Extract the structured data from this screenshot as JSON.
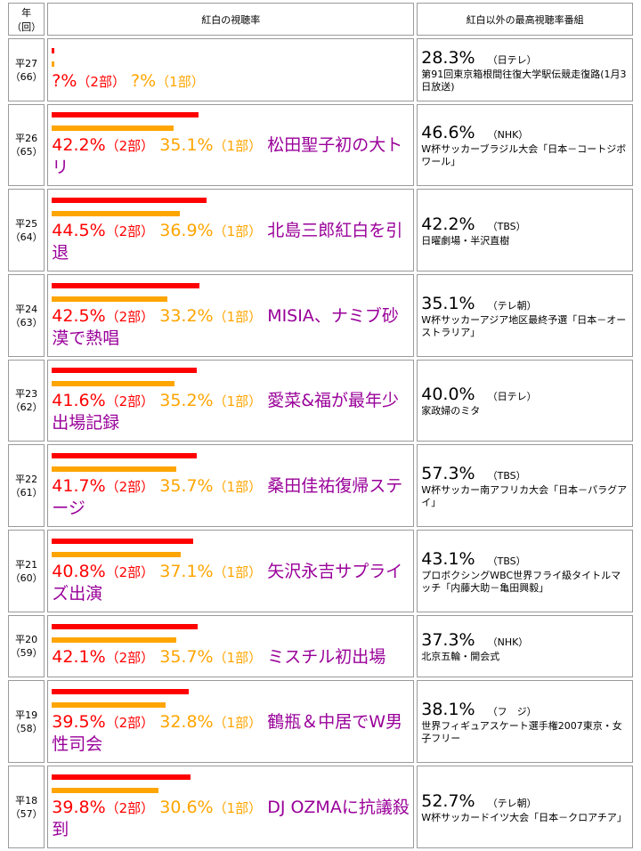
{
  "header": {
    "year_line1": "年",
    "year_line2": "（回）",
    "kohaku": "紅白の視聴率",
    "other": "紅白以外の最高視聴率番組"
  },
  "rows": [
    {
      "year": "平27",
      "edition": "（66）",
      "part2": "?%",
      "part2_unit": "（2部）",
      "part1": "?%",
      "part1_unit": "（1部）",
      "note": "",
      "part2_bar": 0,
      "part1_bar": 0,
      "other_rate": "28.3%",
      "other_channel": "（日テレ）",
      "other_program": "第91回東京箱根間往復大学駅伝競走復路(1月3日放送)",
      "h": 71
    },
    {
      "year": "平26",
      "edition": "（65）",
      "part2": "42.2%",
      "part2_unit": "（2部）",
      "part1": "35.1%",
      "part1_unit": "（1部）",
      "note": "松田聖子初の大トリ",
      "part2_bar": 42.2,
      "part1_bar": 35.1,
      "other_rate": "46.6%",
      "other_channel": "（NHK）",
      "other_program": "W杯サッカーブラジル大会「日本－コートジボワール」",
      "h": 92
    },
    {
      "year": "平25",
      "edition": "（64）",
      "part2": "44.5%",
      "part2_unit": "（2部）",
      "part1": "36.9%",
      "part1_unit": "（1部）",
      "note": "北島三郎紅白を引退",
      "part2_bar": 44.5,
      "part1_bar": 36.9,
      "other_rate": "42.2%",
      "other_channel": "（TBS）",
      "other_program": "日曜劇場・半沢直樹",
      "h": 93
    },
    {
      "year": "平24",
      "edition": "（63）",
      "part2": "42.5%",
      "part2_unit": "（2部）",
      "part1": "33.2%",
      "part1_unit": "（1部）",
      "note": "MISIA、ナミブ砂漠で熱唱",
      "part2_bar": 42.5,
      "part1_bar": 33.2,
      "other_rate": "35.1%",
      "other_channel": "（テレ朝）",
      "other_program": "W杯サッカーアジア地区最終予選「日本－オーストラリア」",
      "h": 93
    },
    {
      "year": "平23",
      "edition": "（62）",
      "part2": "41.6%",
      "part2_unit": "（2部）",
      "part1": "35.2%",
      "part1_unit": "（1部）",
      "note": "愛菜&福が最年少出場記録",
      "part2_bar": 41.6,
      "part1_bar": 35.2,
      "other_rate": "40.0%",
      "other_channel": "（日テレ）",
      "other_program": "家政婦のミタ",
      "h": 92
    },
    {
      "year": "平22",
      "edition": "（61）",
      "part2": "41.7%",
      "part2_unit": "（2部）",
      "part1": "35.7%",
      "part1_unit": "（1部）",
      "note": "桑田佳祐復帰ステージ",
      "part2_bar": 41.7,
      "part1_bar": 35.7,
      "other_rate": "57.3%",
      "other_channel": "（TBS）",
      "other_program": "W杯サッカー南アフリカ大会「日本－パラグアイ」",
      "h": 93
    },
    {
      "year": "平21",
      "edition": "（60）",
      "part2": "40.8%",
      "part2_unit": "（2部）",
      "part1": "37.1%",
      "part1_unit": "（1部）",
      "note": "矢沢永吉サプライズ出演",
      "part2_bar": 40.8,
      "part1_bar": 37.1,
      "other_rate": "43.1%",
      "other_channel": "（TBS）",
      "other_program": "プロボクシングWBC世界フライ級タイトルマッチ「内藤大助－亀田興毅」",
      "h": 93
    },
    {
      "year": "平20",
      "edition": "（59）",
      "part2": "42.1%",
      "part2_unit": "（2部）",
      "part1": "35.7%",
      "part1_unit": "（1部）",
      "note": "ミスチル初出場",
      "part2_bar": 42.1,
      "part1_bar": 35.7,
      "other_rate": "37.3%",
      "other_channel": "（NHK）",
      "other_program": "北京五輪・開会式",
      "h": 70
    },
    {
      "year": "平19",
      "edition": "（58）",
      "part2": "39.5%",
      "part2_unit": "（2部）",
      "part1": "32.8%",
      "part1_unit": "（1部）",
      "note": "鶴瓶＆中居でW男性司会",
      "part2_bar": 39.5,
      "part1_bar": 32.8,
      "other_rate": "38.1%",
      "other_channel": "（フ　ジ）",
      "other_program": "世界フィギュアスケート選手権2007東京・女子フリー",
      "h": 93
    },
    {
      "year": "平18",
      "edition": "（57）",
      "part2": "39.8%",
      "part2_unit": "（2部）",
      "part1": "30.6%",
      "part1_unit": "（1部）",
      "note": "DJ OZMAに抗議殺到",
      "part2_bar": 39.8,
      "part1_bar": 30.6,
      "other_rate": "52.7%",
      "other_channel": "（テレ朝）",
      "other_program": "W杯サッカードイツ大会「日本－クロアチア」",
      "h": 93
    }
  ]
}
